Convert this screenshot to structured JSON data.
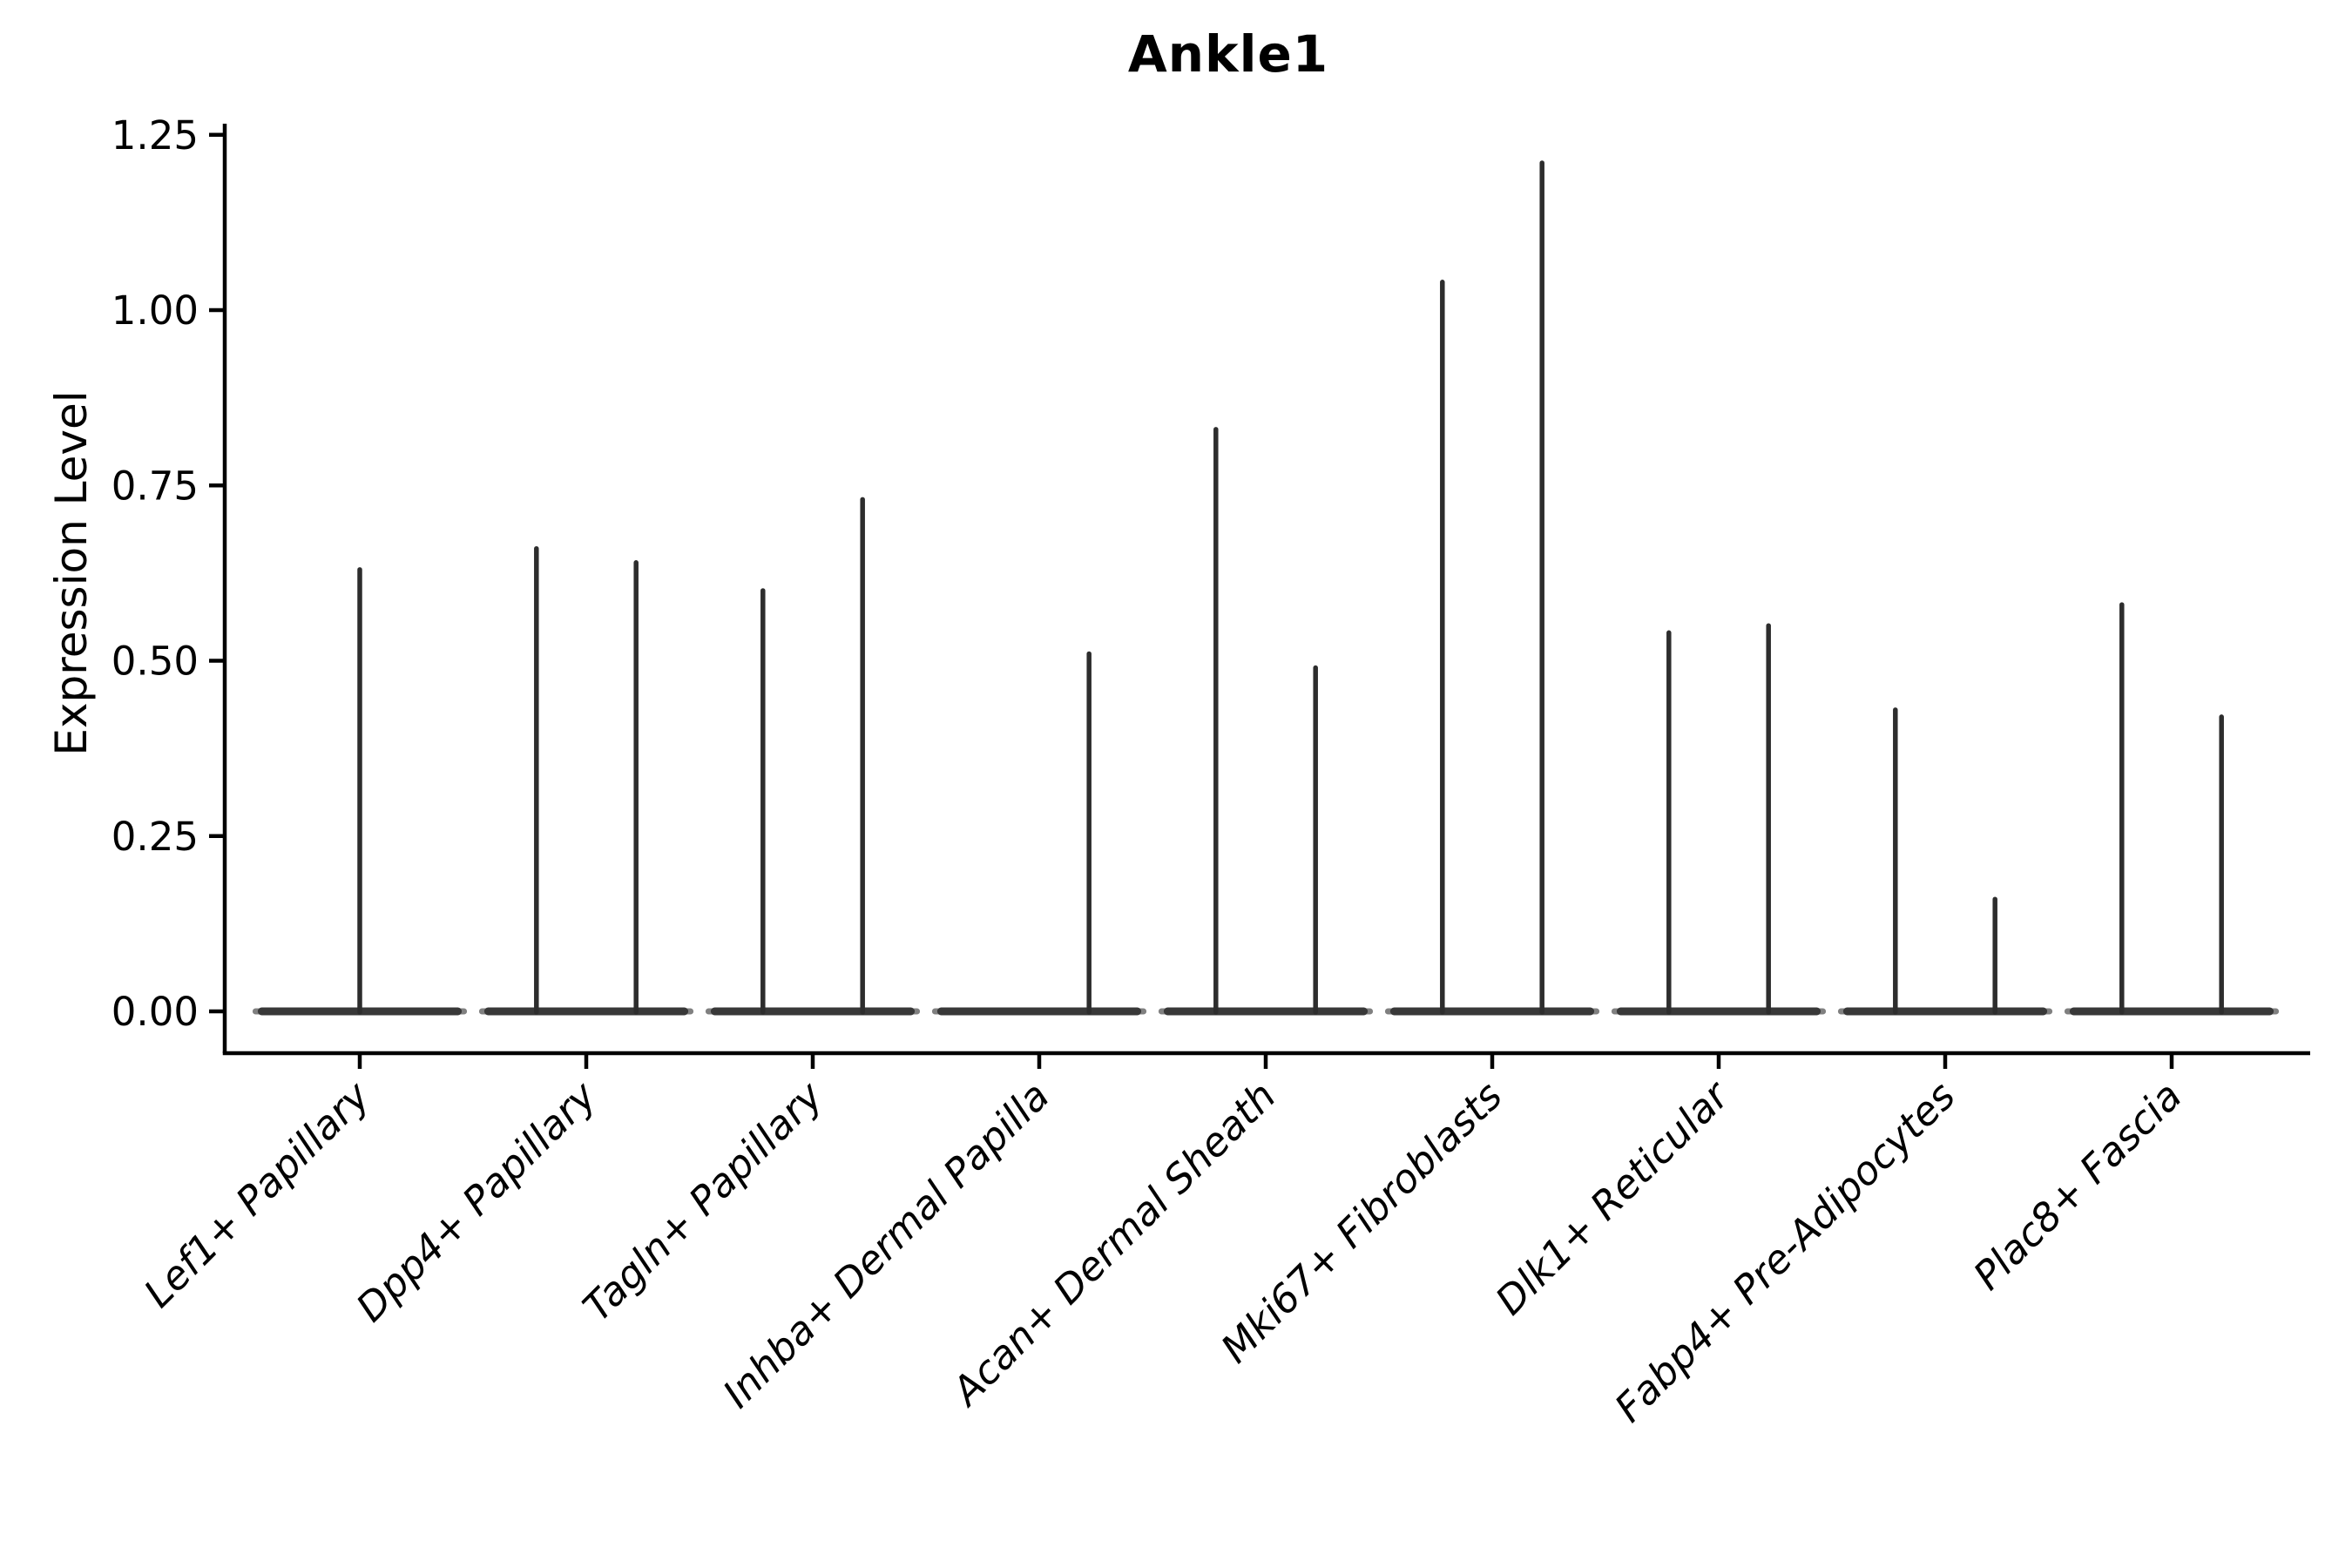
{
  "title": "Ankle1",
  "axes": {
    "ylabel": "Expression Level",
    "ytick_labels": [
      "0.00",
      "0.25",
      "0.50",
      "0.75",
      "1.00",
      "1.25"
    ]
  },
  "style": {
    "background": "#ffffff",
    "text_color": "#000000",
    "spine_color": "#000000",
    "spike_color": "#2d2d2d",
    "base_color": "#383838",
    "base_tip_color": "#808080"
  },
  "chart_data": {
    "type": "violin",
    "title": "Ankle1",
    "xlabel": "",
    "ylabel": "Expression Level",
    "ylim": [
      -0.06,
      1.27
    ],
    "yticks": [
      0,
      0.25,
      0.5,
      0.75,
      1,
      1.25
    ],
    "ytick_labels": [
      "0.00",
      "0.25",
      "0.50",
      "0.75",
      "1.00",
      "1.25"
    ],
    "grid": false,
    "legend": "none",
    "x_label_rotation_deg": 45,
    "x_label_style": "italic",
    "categories": [
      "Lef1+ Papillary",
      "Dpp4+ Papillary",
      "Tagln+ Papillary",
      "Inhba+ Dermal Papilla",
      "Acan+ Dermal Sheath",
      "Mki67+ Fibroblasts",
      "Dlk1+ Reticular",
      "Fabp4+ Pre-Adipocytes",
      "Plac8+ Fascia"
    ],
    "description": "Violin plot of Ankle1 expression; each category shows a flat density base at 0 (most cells do not express the gene) with thin spikes rising to the maximum expression level of rare expressing cells.",
    "violins": [
      {
        "category": "Lef1+ Papillary",
        "zero_base_halfwidth": 0.46,
        "spikes": [
          {
            "offset": 0.0,
            "max": 0.63
          }
        ]
      },
      {
        "category": "Dpp4+ Papillary",
        "zero_base_halfwidth": 0.46,
        "spikes": [
          {
            "offset": -0.22,
            "max": 0.66
          },
          {
            "offset": 0.22,
            "max": 0.64
          }
        ]
      },
      {
        "category": "Tagln+ Papillary",
        "zero_base_halfwidth": 0.46,
        "spikes": [
          {
            "offset": -0.22,
            "max": 0.6
          },
          {
            "offset": 0.22,
            "max": 0.73
          }
        ]
      },
      {
        "category": "Inhba+ Dermal Papilla",
        "zero_base_halfwidth": 0.46,
        "spikes": [
          {
            "offset": 0.22,
            "max": 0.51
          }
        ]
      },
      {
        "category": "Acan+ Dermal Sheath",
        "zero_base_halfwidth": 0.46,
        "spikes": [
          {
            "offset": -0.22,
            "max": 0.83
          },
          {
            "offset": 0.22,
            "max": 0.49
          }
        ]
      },
      {
        "category": "Mki67+ Fibroblasts",
        "zero_base_halfwidth": 0.46,
        "spikes": [
          {
            "offset": -0.22,
            "max": 1.04
          },
          {
            "offset": 0.22,
            "max": 1.21
          }
        ]
      },
      {
        "category": "Dlk1+ Reticular",
        "zero_base_halfwidth": 0.46,
        "spikes": [
          {
            "offset": -0.22,
            "max": 0.54
          },
          {
            "offset": 0.22,
            "max": 0.55
          }
        ]
      },
      {
        "category": "Fabp4+ Pre-Adipocytes",
        "zero_base_halfwidth": 0.46,
        "spikes": [
          {
            "offset": -0.22,
            "max": 0.43
          },
          {
            "offset": 0.22,
            "max": 0.16
          }
        ]
      },
      {
        "category": "Plac8+ Fascia",
        "zero_base_halfwidth": 0.46,
        "spikes": [
          {
            "offset": -0.22,
            "max": 0.58
          },
          {
            "offset": 0.22,
            "max": 0.42
          }
        ]
      }
    ],
    "series": [
      {
        "name": "spike max expression (left, right)",
        "values": [
          [
            0.63
          ],
          [
            0.66,
            0.64
          ],
          [
            0.6,
            0.73
          ],
          [
            0.51
          ],
          [
            0.83,
            0.49
          ],
          [
            1.04,
            1.21
          ],
          [
            0.54,
            0.55
          ],
          [
            0.43,
            0.16
          ],
          [
            0.58,
            0.42
          ]
        ]
      }
    ]
  }
}
